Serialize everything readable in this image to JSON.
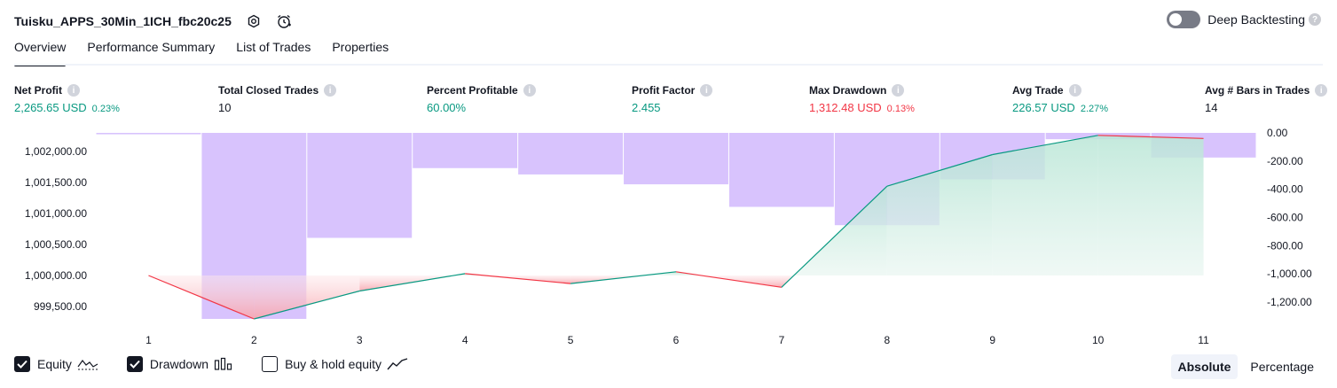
{
  "header": {
    "strategy_name": "Tuisku_APPS_30Min_1ICH_fbc20c25",
    "deep_backtesting_label": "Deep Backtesting",
    "help_glyph": "?"
  },
  "tabs": [
    {
      "label": "Overview",
      "active": true
    },
    {
      "label": "Performance Summary",
      "active": false
    },
    {
      "label": "List of Trades",
      "active": false
    },
    {
      "label": "Properties",
      "active": false
    }
  ],
  "metrics": [
    {
      "label": "Net Profit",
      "value": "2,265.65 USD",
      "pct": "0.23%",
      "tone": "green"
    },
    {
      "label": "Total Closed Trades",
      "value": "10",
      "pct": "",
      "tone": "dark"
    },
    {
      "label": "Percent Profitable",
      "value": "60.00%",
      "pct": "",
      "tone": "green"
    },
    {
      "label": "Profit Factor",
      "value": "2.455",
      "pct": "",
      "tone": "green"
    },
    {
      "label": "Max Drawdown",
      "value": "1,312.48 USD",
      "pct": "0.13%",
      "tone": "red"
    },
    {
      "label": "Avg Trade",
      "value": "226.57 USD",
      "pct": "2.27%",
      "tone": "green"
    },
    {
      "label": "Avg # Bars in Trades",
      "value": "14",
      "pct": "",
      "tone": "dark"
    }
  ],
  "chart_data": {
    "type": "line",
    "x": [
      1,
      2,
      3,
      4,
      5,
      6,
      7,
      8,
      9,
      10,
      11
    ],
    "x_tick_labels": [
      "1",
      "2",
      "3",
      "4",
      "5",
      "6",
      "7",
      "8",
      "9",
      "10",
      "11"
    ],
    "series": [
      {
        "name": "Equity",
        "type": "area",
        "axis": "left",
        "values": [
          1000000,
          999300,
          999750,
          1000030,
          999870,
          1000060,
          999810,
          1001440,
          1001950,
          1002260,
          1002210
        ]
      },
      {
        "name": "Drawdown",
        "type": "bar",
        "axis": "right",
        "values": [
          -10,
          -1320,
          -745,
          -250,
          -295,
          -365,
          -525,
          -655,
          -330,
          -45,
          -175
        ]
      }
    ],
    "left_axis": {
      "ylim": [
        999300,
        1002300
      ],
      "ticks": [
        1002000,
        1001500,
        1001000,
        1000500,
        1000000,
        999500
      ],
      "tick_labels": [
        "1,002,000.00",
        "1,001,500.00",
        "1,001,000.00",
        "1,000,500.00",
        "1,000,000.00",
        "999,500.00"
      ]
    },
    "right_axis": {
      "ylim": [
        -1320,
        0
      ],
      "ticks": [
        0,
        -200,
        -400,
        -600,
        -800,
        -1000,
        -1200
      ],
      "tick_labels": [
        "0.00",
        "-200.00",
        "-400.00",
        "-600.00",
        "-800.00",
        "-1,000.00",
        "-1,200.00"
      ]
    },
    "baseline": 1000000,
    "colors": {
      "equity_up": "#089981",
      "equity_down": "#f23645",
      "drawdown": "#b892fb",
      "area_up": "#d2ede4",
      "area_down": "#fbd5d8"
    }
  },
  "legend": [
    {
      "label": "Equity",
      "checked": true,
      "icon": "equity-line-icon"
    },
    {
      "label": "Drawdown",
      "checked": true,
      "icon": "drawdown-bars-icon"
    },
    {
      "label": "Buy & hold equity",
      "checked": false,
      "icon": "buy-hold-line-icon"
    }
  ],
  "mode": [
    {
      "label": "Absolute",
      "active": true
    },
    {
      "label": "Percentage",
      "active": false
    }
  ]
}
